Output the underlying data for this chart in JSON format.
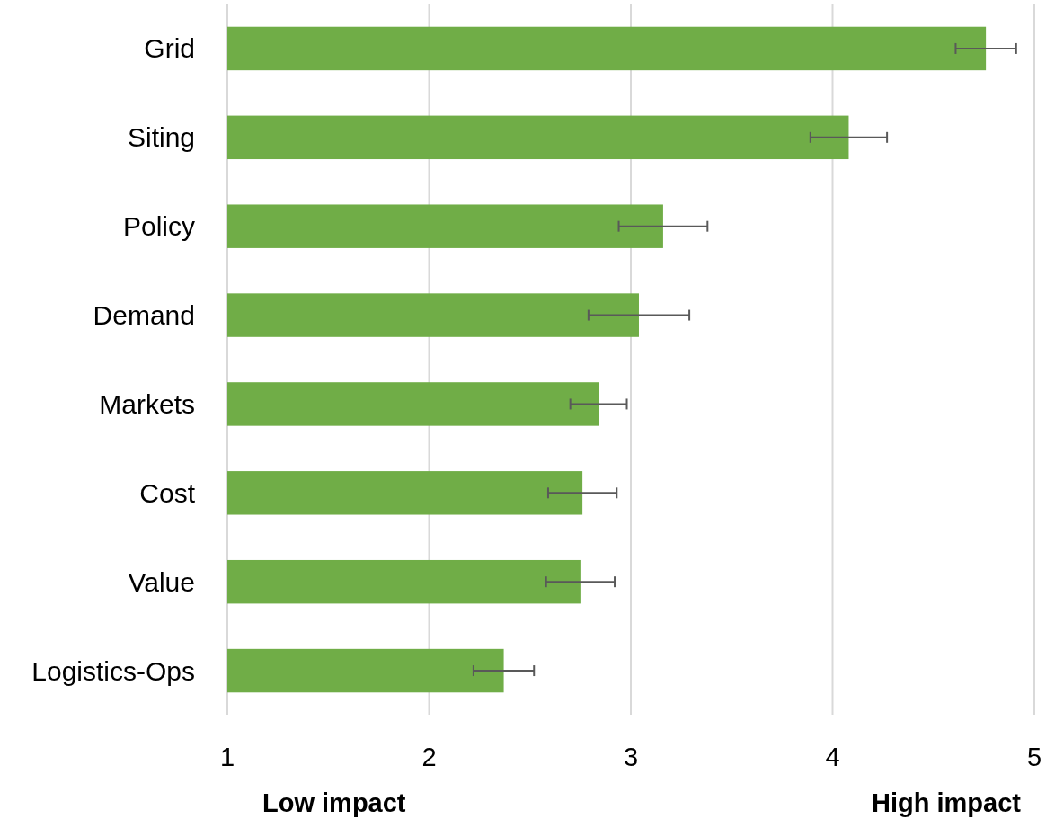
{
  "chart_data": {
    "type": "bar",
    "orientation": "horizontal",
    "categories": [
      "Grid",
      "Siting",
      "Policy",
      "Demand",
      "Markets",
      "Cost",
      "Value",
      "Logistics-Ops"
    ],
    "values": [
      4.76,
      4.08,
      3.16,
      3.04,
      2.84,
      2.76,
      2.75,
      2.37
    ],
    "errors": [
      0.15,
      0.19,
      0.22,
      0.25,
      0.14,
      0.17,
      0.17,
      0.15
    ],
    "color": "#70ad47",
    "xlim": [
      1,
      5
    ],
    "xticks": [
      1,
      2,
      3,
      4,
      5
    ],
    "grid": "x",
    "annotations": [
      "Low impact",
      "High impact"
    ]
  }
}
